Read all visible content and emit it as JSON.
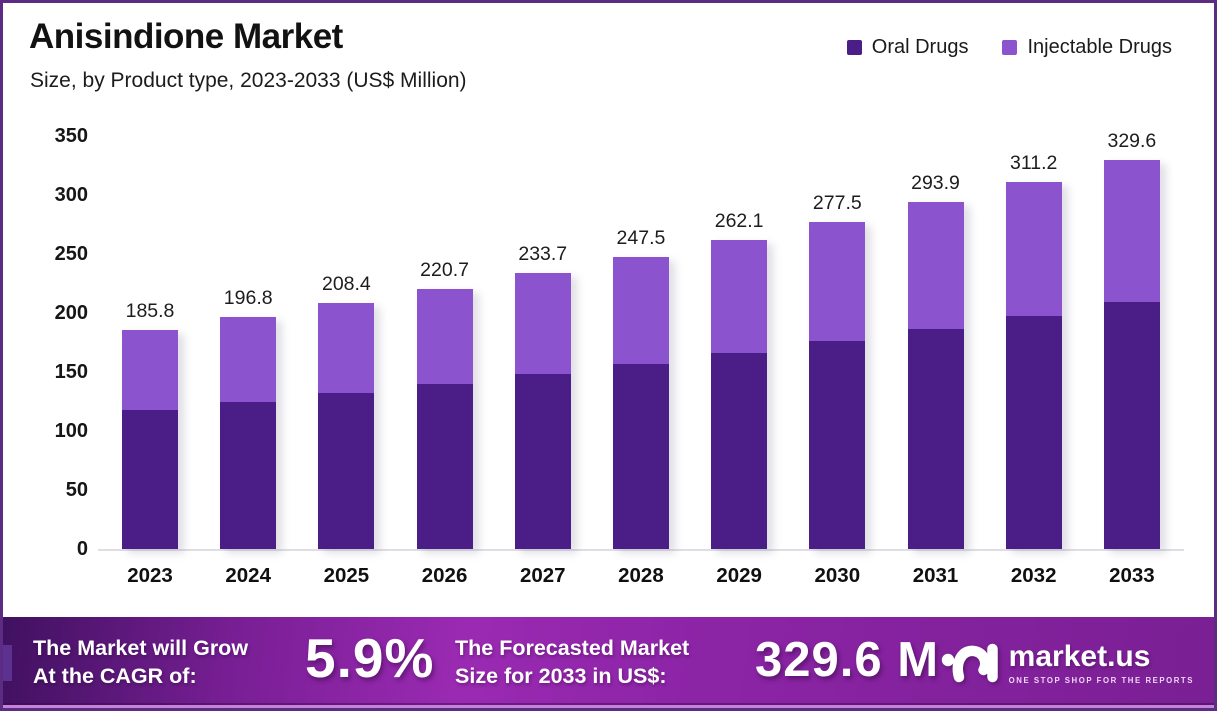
{
  "header": {
    "title": "Anisindione Market",
    "subtitle": "Size, by Product type, 2023-2033 (US$ Million)"
  },
  "chart_data": {
    "type": "bar",
    "stacked": true,
    "title": "Anisindione Market",
    "subtitle": "Size, by Product type, 2023-2033 (US$ Million)",
    "categories": [
      "2023",
      "2024",
      "2025",
      "2026",
      "2027",
      "2028",
      "2029",
      "2030",
      "2031",
      "2032",
      "2033"
    ],
    "series": [
      {
        "name": "Oral Drugs",
        "color": "#4a1d87",
        "values": [
          118.0,
          125.0,
          132.3,
          140.1,
          148.4,
          157.2,
          166.4,
          176.2,
          186.6,
          197.6,
          209.3
        ]
      },
      {
        "name": "Injectable Drugs",
        "color": "#8b53cd",
        "values": [
          67.8,
          71.8,
          76.1,
          80.6,
          85.3,
          90.3,
          95.7,
          101.3,
          107.3,
          113.6,
          120.3
        ]
      }
    ],
    "totals": [
      185.8,
      196.8,
      208.4,
      220.7,
      233.7,
      247.5,
      262.1,
      277.5,
      293.9,
      311.2,
      329.6
    ],
    "total_labels": [
      "185.8",
      "196.8",
      "208.4",
      "220.7",
      "233.7",
      "247.5",
      "262.1",
      "277.5",
      "293.9",
      "311.2",
      "329.6"
    ],
    "yticks": [
      0,
      50,
      100,
      150,
      200,
      250,
      300,
      350
    ],
    "ylim": [
      0,
      350
    ],
    "grid": false,
    "legend_position": "top-right"
  },
  "banner": {
    "growth_label_line1": "The Market will Grow",
    "growth_label_line2": "At the CAGR of:",
    "cagr_value": "5.9%",
    "forecast_label_line1": "The Forecasted Market",
    "forecast_label_line2": "Size for 2033 in US$:",
    "forecast_value": "329.6 M",
    "brand_name": "market.us",
    "brand_tagline": "ONE STOP SHOP FOR THE REPORTS"
  },
  "colors": {
    "oral": "#4a1d87",
    "injectable": "#8b53cd",
    "frame_border": "#5c2c84",
    "banner_left": "#401160",
    "banner_center": "#9a2ab2",
    "banner_right": "#7a1f94"
  }
}
